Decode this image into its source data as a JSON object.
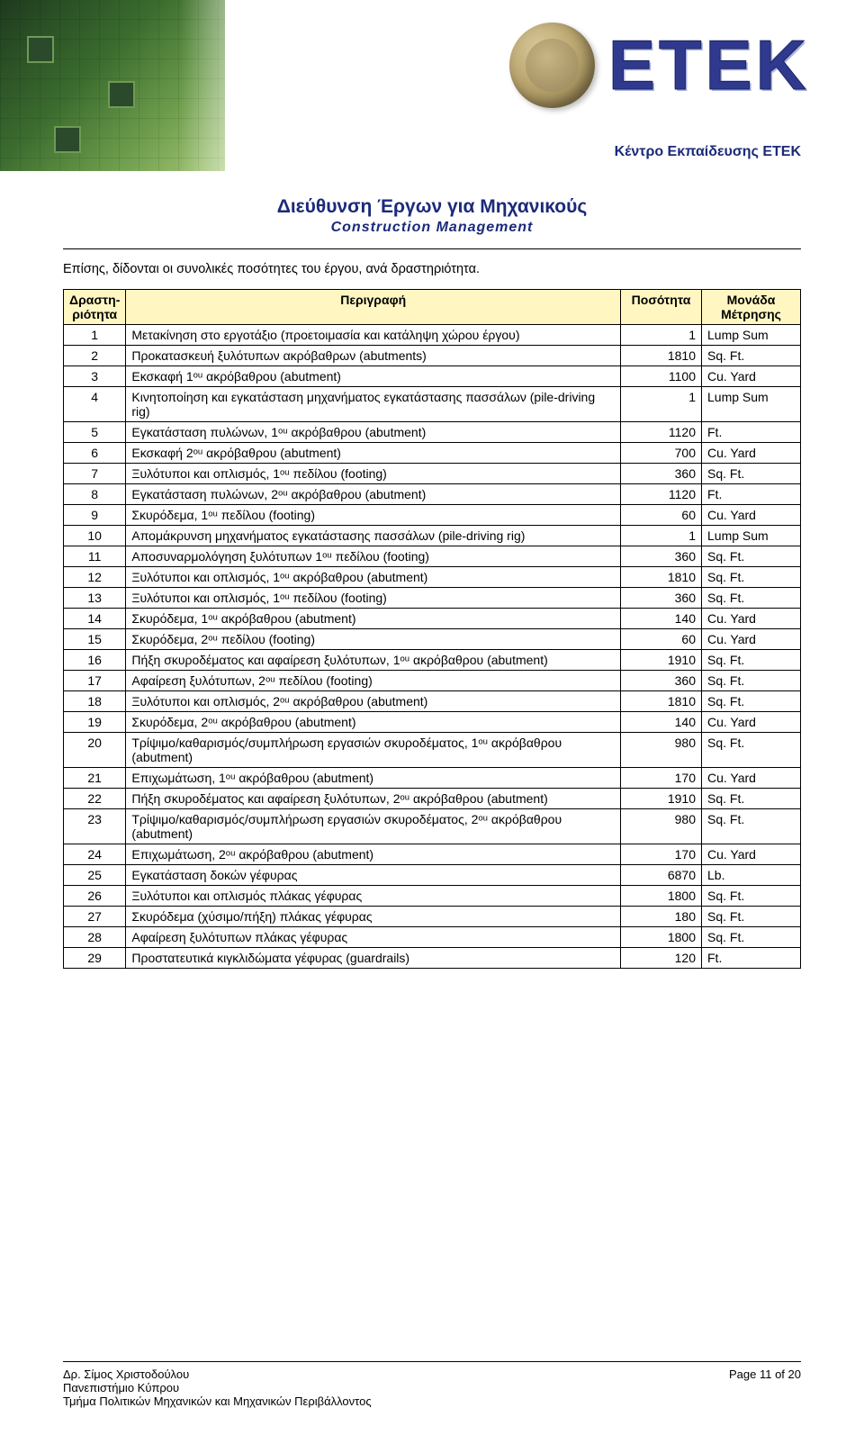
{
  "banner": {
    "logo_text": "ETEK",
    "org_line": "Κέντρο Εκπαίδευσης ΕΤΕΚ",
    "logo_color": "#2f3a8f",
    "org_color": "#1b2a7a",
    "left_gradient": [
      "#1e3a1e",
      "#3a6b2e",
      "#6b9b4a",
      "#a8c97a"
    ]
  },
  "doc": {
    "title": "Διεύθυνση Έργων για Μηχανικούς",
    "subtitle": "Construction Management",
    "title_color": "#1b2a7a"
  },
  "intro": "Επίσης, δίδονται οι συνολικές ποσότητες του έργου, ανά δραστηριότητα.",
  "table": {
    "header_bg": "#fff6c2",
    "columns": [
      "Δραστη-\nριότητα",
      "Περιγραφή",
      "Ποσότητα",
      "Μονάδα\nΜέτρησης"
    ],
    "rows": [
      {
        "n": "1",
        "desc": "Μετακίνηση στο εργοτάξιο (προετοιμασία και κατάληψη χώρου έργου)",
        "qty": "1",
        "unit": "Lump Sum"
      },
      {
        "n": "2",
        "desc": "Προκατασκευή ξυλότυπων ακρόβαθρων (abutments)",
        "qty": "1810",
        "unit": "Sq. Ft."
      },
      {
        "n": "3",
        "desc": "Εκσκαφή 1ᵒᵘ ακρόβαθρου (abutment)",
        "qty": "1100",
        "unit": "Cu. Yard"
      },
      {
        "n": "4",
        "desc": "Κινητοποίηση και εγκατάσταση μηχανήματος εγκατάστασης πασσάλων (pile-driving rig)",
        "qty": "1",
        "unit": "Lump Sum"
      },
      {
        "n": "5",
        "desc": "Εγκατάσταση πυλώνων, 1ᵒᵘ ακρόβαθρου (abutment)",
        "qty": "1120",
        "unit": "Ft."
      },
      {
        "n": "6",
        "desc": "Εκσκαφή 2ᵒᵘ ακρόβαθρου (abutment)",
        "qty": "700",
        "unit": "Cu. Yard"
      },
      {
        "n": "7",
        "desc": "Ξυλότυποι και οπλισμός, 1ᵒᵘ πεδίλου (footing)",
        "qty": "360",
        "unit": "Sq. Ft."
      },
      {
        "n": "8",
        "desc": "Εγκατάσταση πυλώνων, 2ᵒᵘ ακρόβαθρου (abutment)",
        "qty": "1120",
        "unit": "Ft."
      },
      {
        "n": "9",
        "desc": "Σκυρόδεμα, 1ᵒᵘ πεδίλου (footing)",
        "qty": "60",
        "unit": "Cu. Yard"
      },
      {
        "n": "10",
        "desc": "Απομάκρυνση μηχανήματος εγκατάστασης πασσάλων (pile-driving rig)",
        "qty": "1",
        "unit": "Lump Sum"
      },
      {
        "n": "11",
        "desc": "Αποσυναρμολόγηση ξυλότυπων 1ᵒᵘ πεδίλου (footing)",
        "qty": "360",
        "unit": "Sq. Ft."
      },
      {
        "n": "12",
        "desc": "Ξυλότυποι και οπλισμός, 1ᵒᵘ ακρόβαθρου (abutment)",
        "qty": "1810",
        "unit": "Sq. Ft."
      },
      {
        "n": "13",
        "desc": "Ξυλότυποι και οπλισμός, 1ᵒᵘ πεδίλου (footing)",
        "qty": "360",
        "unit": "Sq. Ft."
      },
      {
        "n": "14",
        "desc": "Σκυρόδεμα, 1ᵒᵘ ακρόβαθρου (abutment)",
        "qty": "140",
        "unit": "Cu. Yard"
      },
      {
        "n": "15",
        "desc": "Σκυρόδεμα, 2ᵒᵘ πεδίλου (footing)",
        "qty": "60",
        "unit": "Cu. Yard"
      },
      {
        "n": "16",
        "desc": "Πήξη σκυροδέματος και αφαίρεση ξυλότυπων, 1ᵒᵘ ακρόβαθρου (abutment)",
        "qty": "1910",
        "unit": "Sq. Ft."
      },
      {
        "n": "17",
        "desc": "Αφαίρεση ξυλότυπων, 2ᵒᵘ πεδίλου (footing)",
        "qty": "360",
        "unit": "Sq. Ft."
      },
      {
        "n": "18",
        "desc": "Ξυλότυποι και οπλισμός, 2ᵒᵘ ακρόβαθρου (abutment)",
        "qty": "1810",
        "unit": "Sq. Ft."
      },
      {
        "n": "19",
        "desc": "Σκυρόδεμα, 2ᵒᵘ ακρόβαθρου (abutment)",
        "qty": "140",
        "unit": "Cu. Yard"
      },
      {
        "n": "20",
        "desc": "Τρίψιμο/καθαρισμός/συμπλήρωση εργασιών σκυροδέματος, 1ᵒᵘ ακρόβαθρου (abutment)",
        "qty": "980",
        "unit": "Sq. Ft."
      },
      {
        "n": "21",
        "desc": "Επιχωμάτωση, 1ᵒᵘ ακρόβαθρου (abutment)",
        "qty": "170",
        "unit": "Cu. Yard"
      },
      {
        "n": "22",
        "desc": "Πήξη σκυροδέματος και αφαίρεση ξυλότυπων, 2ᵒᵘ ακρόβαθρου  (abutment)",
        "qty": "1910",
        "unit": "Sq. Ft."
      },
      {
        "n": "23",
        "desc": "Τρίψιμο/καθαρισμός/συμπλήρωση εργασιών σκυροδέματος, 2ᵒᵘ ακρόβαθρου (abutment)",
        "qty": "980",
        "unit": "Sq. Ft."
      },
      {
        "n": "24",
        "desc": "Επιχωμάτωση, 2ᵒᵘ ακρόβαθρου (abutment)",
        "qty": "170",
        "unit": "Cu. Yard"
      },
      {
        "n": "25",
        "desc": "Εγκατάσταση δοκών γέφυρας",
        "qty": "6870",
        "unit": "Lb."
      },
      {
        "n": "26",
        "desc": "Ξυλότυποι και οπλισμός πλάκας γέφυρας",
        "qty": "1800",
        "unit": "Sq. Ft."
      },
      {
        "n": "27",
        "desc": "Σκυρόδεμα (χύσιμο/πήξη) πλάκας γέφυρας",
        "qty": "180",
        "unit": "Sq. Ft."
      },
      {
        "n": "28",
        "desc": "Αφαίρεση ξυλότυπων πλάκας γέφυρας",
        "qty": "1800",
        "unit": "Sq. Ft."
      },
      {
        "n": "29",
        "desc": "Προστατευτικά κιγκλιδώματα γέφυρας (guardrails)",
        "qty": "120",
        "unit": "Ft."
      }
    ]
  },
  "footer": {
    "author": "Δρ. Σίμος Χριστοδούλου",
    "uni": "Πανεπιστήμιο Κύπρου",
    "dept": "Τμήμα Πολιτικών Μηχανικών και Μηχανικών Περιβάλλοντος",
    "page": "Page 11 of 20"
  }
}
